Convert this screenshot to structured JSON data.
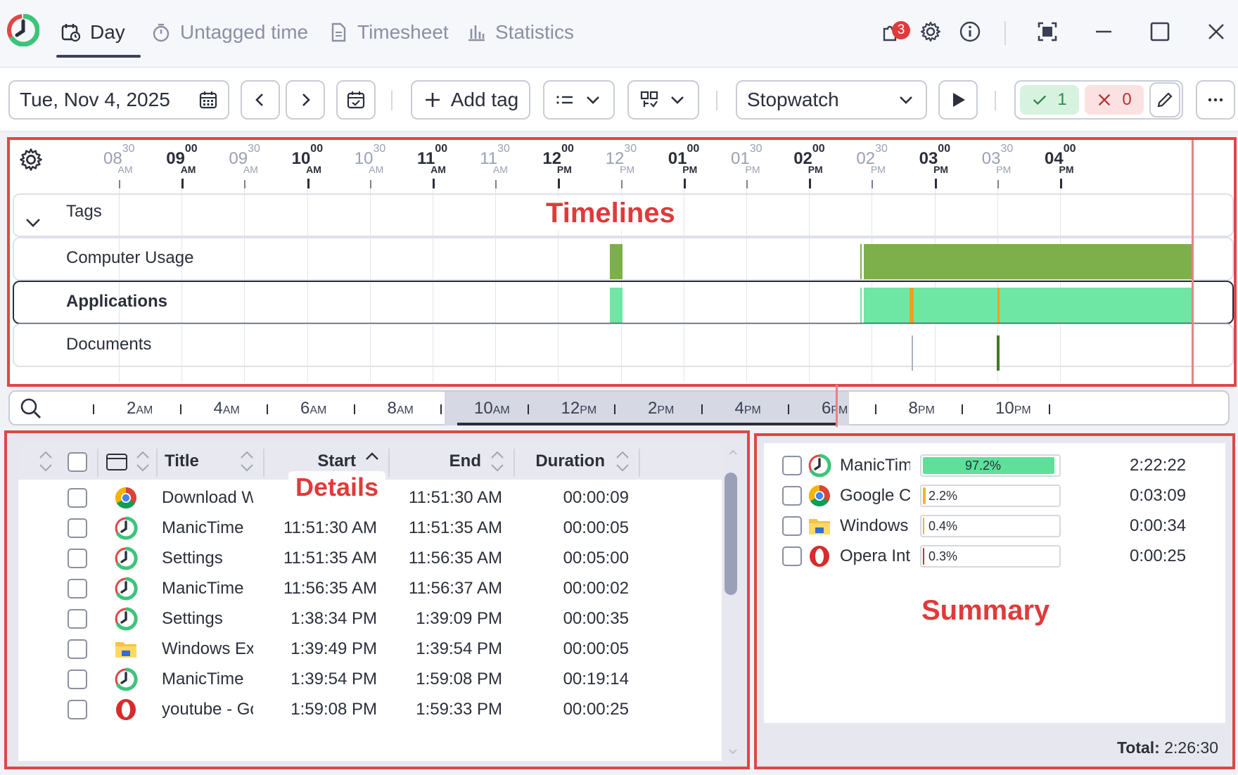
{
  "tabs": [
    {
      "label": "Day",
      "active": true
    },
    {
      "label": "Untagged time",
      "active": false
    },
    {
      "label": "Timesheet",
      "active": false
    },
    {
      "label": "Statistics",
      "active": false
    }
  ],
  "titlebar": {
    "notifications_count": "3"
  },
  "toolbar": {
    "date": "Tue, Nov 4, 2025",
    "add_tag_label": "Add tag",
    "stopwatch_label": "Stopwatch",
    "checked_count": "1",
    "failed_count": "0"
  },
  "timeline_ticks": [
    {
      "hour": "08",
      "min": "30",
      "ampm": "AM",
      "major": false
    },
    {
      "hour": "09",
      "min": "00",
      "ampm": "AM",
      "major": true
    },
    {
      "hour": "09",
      "min": "30",
      "ampm": "AM",
      "major": false
    },
    {
      "hour": "10",
      "min": "00",
      "ampm": "AM",
      "major": true
    },
    {
      "hour": "10",
      "min": "30",
      "ampm": "AM",
      "major": false
    },
    {
      "hour": "11",
      "min": "00",
      "ampm": "AM",
      "major": true
    },
    {
      "hour": "11",
      "min": "30",
      "ampm": "AM",
      "major": false
    },
    {
      "hour": "12",
      "min": "00",
      "ampm": "PM",
      "major": true
    },
    {
      "hour": "12",
      "min": "30",
      "ampm": "PM",
      "major": false
    },
    {
      "hour": "01",
      "min": "00",
      "ampm": "PM",
      "major": true
    },
    {
      "hour": "01",
      "min": "30",
      "ampm": "PM",
      "major": false
    },
    {
      "hour": "02",
      "min": "00",
      "ampm": "PM",
      "major": true
    },
    {
      "hour": "02",
      "min": "30",
      "ampm": "PM",
      "major": false
    },
    {
      "hour": "03",
      "min": "00",
      "ampm": "PM",
      "major": true
    },
    {
      "hour": "03",
      "min": "30",
      "ampm": "PM",
      "major": false
    },
    {
      "hour": "04",
      "min": "00",
      "ampm": "PM",
      "major": true
    }
  ],
  "timeline_rows": [
    {
      "label": "Tags"
    },
    {
      "label": "Computer Usage"
    },
    {
      "label": "Applications"
    },
    {
      "label": "Documents"
    }
  ],
  "overview_labels": [
    {
      "num": "2",
      "ampm": "AM"
    },
    {
      "num": "4",
      "ampm": "AM"
    },
    {
      "num": "6",
      "ampm": "AM"
    },
    {
      "num": "8",
      "ampm": "AM"
    },
    {
      "num": "10",
      "ampm": "AM"
    },
    {
      "num": "12",
      "ampm": "PM"
    },
    {
      "num": "2",
      "ampm": "PM"
    },
    {
      "num": "4",
      "ampm": "PM"
    },
    {
      "num": "6",
      "ampm": "PM"
    },
    {
      "num": "8",
      "ampm": "PM"
    },
    {
      "num": "10",
      "ampm": "PM"
    }
  ],
  "overlays": {
    "timelines": "Timelines",
    "details": "Details",
    "summary": "Summary"
  },
  "details": {
    "columns": {
      "title": "Title",
      "start": "Start",
      "end": "End",
      "duration": "Duration"
    },
    "rows": [
      {
        "icon": "chrome",
        "title": "Download Wi",
        "start": "",
        "end": "11:51:30 AM",
        "duration": "00:00:09"
      },
      {
        "icon": "manictime",
        "title": "ManicTime",
        "start": "11:51:30 AM",
        "end": "11:51:35 AM",
        "duration": "00:00:05"
      },
      {
        "icon": "manictime",
        "title": "Settings",
        "start": "11:51:35 AM",
        "end": "11:56:35 AM",
        "duration": "00:05:00"
      },
      {
        "icon": "manictime",
        "title": "ManicTime",
        "start": "11:56:35 AM",
        "end": "11:56:37 AM",
        "duration": "00:00:02"
      },
      {
        "icon": "manictime",
        "title": "Settings",
        "start": "1:38:34 PM",
        "end": "1:39:09 PM",
        "duration": "00:00:35"
      },
      {
        "icon": "folder",
        "title": "Windows Expl",
        "start": "1:39:49 PM",
        "end": "1:39:54 PM",
        "duration": "00:00:05"
      },
      {
        "icon": "manictime",
        "title": "ManicTime",
        "start": "1:39:54 PM",
        "end": "1:59:08 PM",
        "duration": "00:19:14"
      },
      {
        "icon": "opera",
        "title": "youtube - Goo",
        "start": "1:59:08 PM",
        "end": "1:59:33 PM",
        "duration": "00:00:25"
      }
    ]
  },
  "summary": {
    "rows": [
      {
        "icon": "manictime",
        "name": "ManicTim",
        "percent": 97.2,
        "percent_label": "97.2%",
        "duration": "2:22:22",
        "color": "#5ee09a"
      },
      {
        "icon": "chrome",
        "name": "Google C",
        "percent": 2.2,
        "percent_label": "2.2%",
        "duration": "0:03:09",
        "color": "#f0b429"
      },
      {
        "icon": "folder",
        "name": "Windows",
        "percent": 0.4,
        "percent_label": "0.4%",
        "duration": "0:00:34",
        "color": "#f0b429"
      },
      {
        "icon": "opera",
        "name": "Opera Int",
        "percent": 0.3,
        "percent_label": "0.3%",
        "duration": "0:00:25",
        "color": "#d62c2c"
      }
    ],
    "total_label": "Total:",
    "total_value": "2:26:30"
  },
  "colors": {
    "accent_red": "#e04646",
    "computer_usage": "#7db04a",
    "applications": "#6ee6a4",
    "applications_alt": "#f0a020",
    "documents": "#3f7a2a"
  }
}
